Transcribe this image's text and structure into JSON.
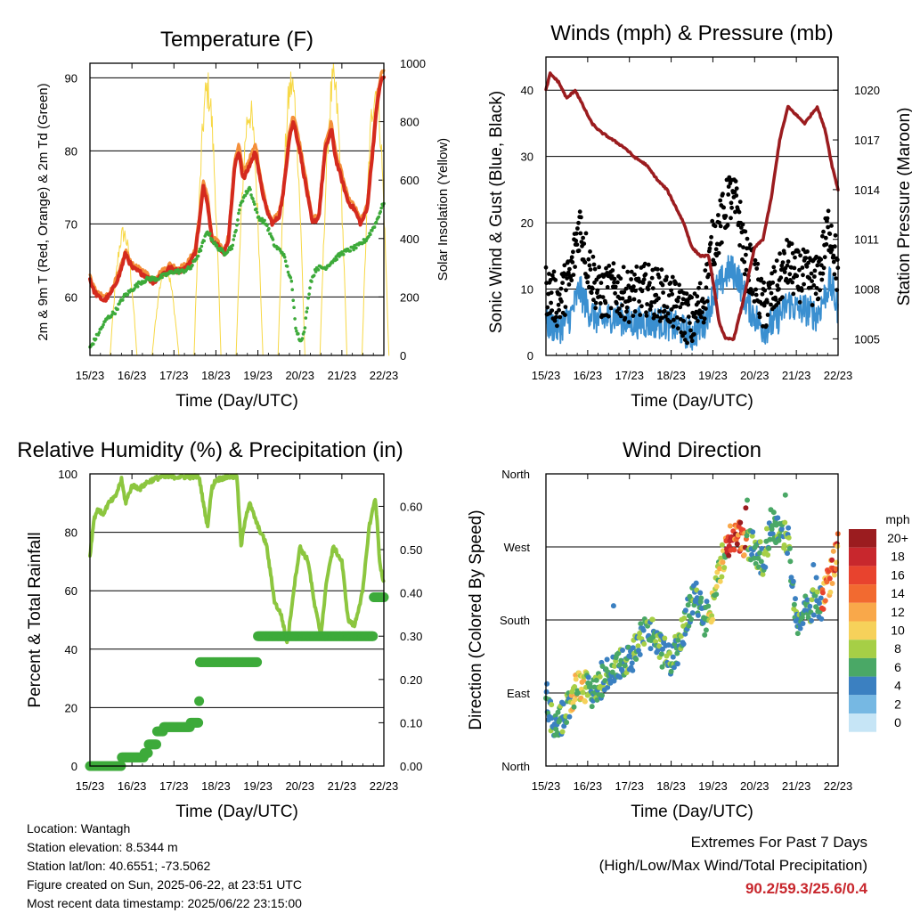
{
  "chart_data": [
    {
      "type": "line",
      "title": "Temperature (F)",
      "xlabel": "Time (Day/UTC)",
      "ylabel": "2m & 9m T (Red, Orange) & 2m Td (Green)",
      "y2label": "Solar Insolation (Yellow)",
      "x_ticks": [
        "15/23",
        "16/23",
        "17/23",
        "18/23",
        "19/23",
        "20/23",
        "21/23",
        "22/23"
      ],
      "x_range": [
        0,
        7
      ],
      "ylim": [
        52,
        92
      ],
      "y_ticks": [
        60,
        70,
        80,
        90
      ],
      "y2lim": [
        0,
        1000
      ],
      "y2_ticks": [
        0,
        200,
        400,
        600,
        800,
        1000
      ],
      "grid": "horizontal",
      "series": [
        {
          "color": "#d42a1e",
          "x": [
            0,
            0.08,
            0.2,
            0.35,
            0.5,
            0.7,
            0.85,
            1.0,
            1.15,
            1.3,
            1.5,
            1.7,
            1.9,
            2.1,
            2.3,
            2.5,
            2.6,
            2.7,
            2.8,
            2.9,
            3.05,
            3.2,
            3.3,
            3.45,
            3.55,
            3.65,
            3.8,
            3.95,
            4.05,
            4.2,
            4.35,
            4.5,
            4.6,
            4.75,
            4.85,
            5.0,
            5.15,
            5.3,
            5.45,
            5.6,
            5.75,
            5.85,
            6.0,
            6.15,
            6.3,
            6.45,
            6.6,
            6.75,
            6.85,
            6.95,
            7.0
          ],
          "y": [
            62.5,
            61,
            60,
            59.5,
            60.5,
            63,
            66,
            64,
            63.5,
            63,
            62,
            63,
            64,
            63.5,
            64,
            66,
            70,
            75,
            73,
            68,
            67,
            66,
            68,
            78,
            80,
            76,
            78,
            80,
            76,
            72,
            70,
            71,
            74,
            82,
            84,
            80,
            75,
            70,
            71,
            80,
            83,
            79,
            76,
            73,
            72,
            70,
            72,
            81,
            87,
            90,
            90
          ]
        },
        {
          "color": "#f48f3a",
          "x": [
            0,
            0.08,
            0.2,
            0.35,
            0.5,
            0.7,
            0.85,
            1.0,
            1.15,
            1.3,
            1.5,
            1.7,
            1.9,
            2.1,
            2.3,
            2.5,
            2.6,
            2.7,
            2.8,
            2.9,
            3.05,
            3.2,
            3.3,
            3.45,
            3.55,
            3.65,
            3.8,
            3.95,
            4.05,
            4.2,
            4.35,
            4.5,
            4.6,
            4.75,
            4.85,
            5.0,
            5.15,
            5.3,
            5.45,
            5.6,
            5.75,
            5.85,
            6.0,
            6.15,
            6.3,
            6.45,
            6.6,
            6.75,
            6.85,
            6.95,
            7.0
          ],
          "y": [
            63,
            61.5,
            60.5,
            60,
            61,
            63.5,
            66.5,
            64.5,
            64,
            63.5,
            62.5,
            63.5,
            64.5,
            64,
            64.5,
            66.5,
            71,
            76,
            74,
            68.5,
            67.5,
            66.5,
            68.5,
            79,
            81,
            77,
            79,
            81,
            77,
            72.5,
            70.5,
            71.5,
            74.5,
            83,
            85,
            81,
            76,
            70.5,
            71.5,
            81,
            84,
            80,
            77,
            73.5,
            72.5,
            70.5,
            72.5,
            82,
            88,
            91,
            91
          ]
        },
        {
          "color": "#3daa3a",
          "x": [
            0,
            0.2,
            0.4,
            0.6,
            0.8,
            1.0,
            1.2,
            1.4,
            1.6,
            1.8,
            2.0,
            2.2,
            2.4,
            2.6,
            2.8,
            3.0,
            3.2,
            3.4,
            3.6,
            3.8,
            4.0,
            4.2,
            4.4,
            4.6,
            4.8,
            4.9,
            5.0,
            5.1,
            5.25,
            5.4,
            5.6,
            5.8,
            6.0,
            6.2,
            6.4,
            6.6,
            6.8,
            7.0
          ],
          "y": [
            53,
            55,
            57,
            58,
            60,
            61,
            62,
            62.5,
            62.5,
            63,
            63.5,
            63.5,
            64,
            66,
            69,
            67,
            66,
            67,
            73,
            75,
            71,
            70,
            67,
            66,
            62,
            56,
            54,
            55,
            62,
            64,
            64,
            65,
            66,
            66.5,
            67,
            68,
            70,
            73
          ]
        }
      ],
      "solar": {
        "color": "#f7d845",
        "peaks": [
          {
            "x": 0.8,
            "value": 450
          },
          {
            "x": 1.8,
            "value": 320
          },
          {
            "x": 2.8,
            "value": 980
          },
          {
            "x": 3.8,
            "value": 900
          },
          {
            "x": 4.8,
            "value": 1000
          },
          {
            "x": 5.8,
            "value": 1000
          },
          {
            "x": 6.8,
            "value": 980
          }
        ]
      }
    },
    {
      "type": "scatter",
      "title": "Winds (mph) & Pressure (mb)",
      "xlabel": "Time (Day/UTC)",
      "ylabel": "Sonic Wind & Gust (Blue, Black)",
      "y2label": "Station Pressure (Maroon)",
      "x_ticks": [
        "15/23",
        "16/23",
        "17/23",
        "18/23",
        "19/23",
        "20/23",
        "21/23",
        "22/23"
      ],
      "x_range": [
        0,
        7
      ],
      "ylim": [
        0,
        45
      ],
      "y_ticks": [
        0,
        10,
        20,
        30,
        40
      ],
      "y2lim": [
        1004,
        1022
      ],
      "y2_ticks": [
        1005,
        1008,
        1011,
        1014,
        1017,
        1020
      ],
      "grid": "horizontal",
      "wind_color": "#3a8fd0",
      "gust_color": "#000000",
      "wind_profile": {
        "x": [
          0,
          0.3,
          0.6,
          0.8,
          1.0,
          1.3,
          1.6,
          2.0,
          2.4,
          2.8,
          3.2,
          3.5,
          3.8,
          4.0,
          4.2,
          4.4,
          4.6,
          4.8,
          5.0,
          5.2,
          5.5,
          5.8,
          6.0,
          6.2,
          6.5,
          6.8,
          7.0
        ],
        "gust": [
          10,
          8,
          12,
          20,
          14,
          9,
          10,
          9,
          10,
          9,
          7,
          5,
          9,
          17,
          20,
          24,
          22,
          14,
          12,
          7,
          10,
          14,
          12,
          12,
          11,
          20,
          12
        ],
        "wind": [
          5,
          4,
          6,
          10,
          7,
          5,
          6,
          5,
          5,
          5,
          4,
          3,
          5,
          9,
          11,
          13,
          12,
          8,
          6,
          4,
          5,
          8,
          7,
          7,
          6,
          11,
          7
        ]
      },
      "pressure": {
        "color": "#9b1c1f",
        "x": [
          0,
          0.1,
          0.3,
          0.5,
          0.7,
          0.9,
          1.1,
          1.3,
          1.6,
          1.9,
          2.1,
          2.4,
          2.7,
          2.9,
          3.1,
          3.3,
          3.5,
          3.7,
          3.9,
          4.0,
          4.15,
          4.3,
          4.5,
          4.7,
          5.0,
          5.2,
          5.4,
          5.6,
          5.8,
          6.0,
          6.2,
          6.35,
          6.5,
          6.7,
          6.85,
          7.0
        ],
        "y": [
          1020,
          1021,
          1020.5,
          1019.5,
          1020,
          1019,
          1018,
          1017.5,
          1017,
          1016.5,
          1016,
          1015.5,
          1014.5,
          1014,
          1013,
          1012,
          1010.5,
          1010,
          1010,
          1008.5,
          1006,
          1005,
          1005,
          1007,
          1010.5,
          1011,
          1013.5,
          1017,
          1019,
          1018.5,
          1018,
          1018.5,
          1019,
          1017.5,
          1015.5,
          1014
        ]
      }
    },
    {
      "type": "line",
      "title": "Relative Humidity (%) & Precipitation (in)",
      "xlabel": "Time (Day/UTC)",
      "ylabel": "Percent & Total Rainfall",
      "x_ticks": [
        "15/23",
        "16/23",
        "17/23",
        "18/23",
        "19/23",
        "20/23",
        "21/23",
        "22/23"
      ],
      "x_range": [
        0,
        7
      ],
      "ylim": [
        0,
        100
      ],
      "y_ticks": [
        0,
        20,
        40,
        60,
        80,
        100
      ],
      "y2lim": [
        0,
        0.675
      ],
      "y2_ticks": [
        "0.00",
        "0.10",
        "0.20",
        "0.30",
        "0.40",
        "0.50",
        "0.60"
      ],
      "grid": "horizontal",
      "series": [
        {
          "color": "#8cc63f",
          "x": [
            0,
            0.1,
            0.2,
            0.3,
            0.45,
            0.6,
            0.75,
            0.85,
            1.0,
            1.2,
            1.35,
            1.5,
            1.7,
            2.0,
            2.3,
            2.6,
            2.7,
            2.8,
            2.9,
            3.0,
            3.3,
            3.5,
            3.6,
            3.7,
            3.8,
            4.0,
            4.2,
            4.4,
            4.55,
            4.7,
            4.85,
            5.0,
            5.2,
            5.35,
            5.5,
            5.65,
            5.8,
            6.0,
            6.15,
            6.3,
            6.5,
            6.65,
            6.8,
            6.9,
            7.0
          ],
          "y": [
            72,
            85,
            88,
            86,
            90,
            92,
            98,
            90,
            96,
            95,
            97,
            98,
            99,
            99,
            99,
            99,
            90,
            82,
            95,
            98,
            99,
            99,
            75,
            85,
            90,
            82,
            76,
            56,
            52,
            42,
            60,
            75,
            70,
            55,
            45,
            65,
            75,
            70,
            50,
            48,
            60,
            82,
            92,
            70,
            62
          ]
        },
        {
          "color": "#3daa3a",
          "axis": "y2",
          "x": [
            0,
            0.7,
            0.75,
            1.3,
            1.4,
            1.6,
            1.75,
            2.4,
            2.5,
            2.6,
            2.62,
            3.95,
            4.0,
            6.7,
            6.75,
            7.0
          ],
          "y": [
            0,
            0,
            0.02,
            0.03,
            0.05,
            0.08,
            0.09,
            0.1,
            0.1,
            0.15,
            0.24,
            0.24,
            0.3,
            0.3,
            0.39,
            0.39
          ]
        }
      ]
    },
    {
      "type": "scatter",
      "title": "Wind Direction",
      "xlabel": "Time (Day/UTC)",
      "ylabel": "Direction (Colored By Speed)",
      "x_ticks": [
        "15/23",
        "16/23",
        "17/23",
        "18/23",
        "19/23",
        "20/23",
        "21/23",
        "22/23"
      ],
      "x_range": [
        0,
        7
      ],
      "y_ticks": [
        "North",
        "East",
        "South",
        "West",
        "North"
      ],
      "ylim": [
        0,
        360
      ],
      "grid": "horizontal",
      "legend_title": "mph",
      "legend_position": "right",
      "legend": [
        "20+",
        "18",
        "16",
        "14",
        "12",
        "10",
        "8",
        "6",
        "4",
        "2",
        "0"
      ],
      "legend_colors": [
        "#9b1c1f",
        "#c8272d",
        "#e8432e",
        "#f26a30",
        "#f9a84a",
        "#f6d15a",
        "#a6cf46",
        "#4aa866",
        "#3b80c1",
        "#76b8e3",
        "#c6e5f6"
      ],
      "direction_profile": {
        "x": [
          0,
          0.2,
          0.4,
          0.6,
          0.8,
          1.0,
          1.2,
          1.4,
          1.6,
          1.8,
          2.0,
          2.2,
          2.4,
          2.6,
          2.8,
          3.0,
          3.2,
          3.4,
          3.6,
          3.8,
          4.0,
          4.2,
          4.4,
          4.6,
          4.8,
          5.0,
          5.2,
          5.4,
          5.6,
          5.8,
          6.0,
          6.2,
          6.4,
          6.6,
          6.8,
          7.0
        ],
        "deg": [
          90,
          40,
          60,
          85,
          100,
          95,
          90,
          110,
          120,
          130,
          130,
          150,
          170,
          160,
          140,
          130,
          150,
          190,
          210,
          180,
          200,
          250,
          280,
          285,
          275,
          270,
          250,
          300,
          290,
          280,
          180,
          190,
          200,
          200,
          230,
          270
        ]
      }
    }
  ],
  "info": {
    "location": "Location: Wantagh",
    "elevation": "Station elevation: 8.5344 m",
    "latlon": "Station lat/lon: 40.6551; -73.5062",
    "created": "Figure created on Sun, 2025-06-22, at 23:51 UTC",
    "recent": "Most recent data timestamp: 2025/06/22 23:15:00"
  },
  "extremes": {
    "title": "Extremes For Past 7 Days",
    "subtitle": "(High/Low/Max Wind/Total Precipitation)",
    "values": "90.2/59.3/25.6/0.4"
  }
}
